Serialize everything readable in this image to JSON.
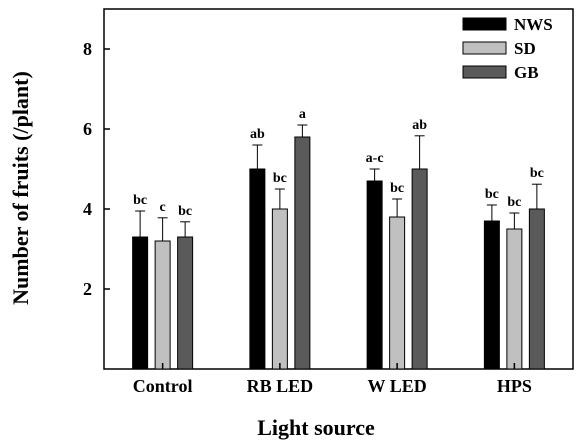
{
  "chart_data": {
    "type": "bar",
    "title": "",
    "xlabel": "Light source",
    "ylabel": "Number of fruits (/plant)",
    "categories": [
      "Control",
      "RB LED",
      "W LED",
      "HPS"
    ],
    "ylim": [
      0,
      9
    ],
    "yticks": [
      "2",
      "4",
      "6",
      "8"
    ],
    "grid": false,
    "legend_position": "top-right",
    "series": [
      {
        "name": "NWS",
        "color": "#000000",
        "values": [
          3.3,
          5.0,
          4.7,
          3.7
        ],
        "errors": [
          0.65,
          0.6,
          0.3,
          0.4
        ],
        "letters": [
          "bc",
          "ab",
          "a-c",
          "bc"
        ]
      },
      {
        "name": "SD",
        "color": "#c0c0c0",
        "values": [
          3.2,
          4.0,
          3.8,
          3.5
        ],
        "errors": [
          0.58,
          0.5,
          0.45,
          0.4
        ],
        "letters": [
          "c",
          "bc",
          "bc",
          "bc"
        ]
      },
      {
        "name": "GB",
        "color": "#5a5a5a",
        "values": [
          3.3,
          5.8,
          5.0,
          4.0
        ],
        "errors": [
          0.38,
          0.3,
          0.83,
          0.62
        ],
        "letters": [
          "bc",
          "a",
          "ab",
          "bc"
        ]
      }
    ]
  }
}
